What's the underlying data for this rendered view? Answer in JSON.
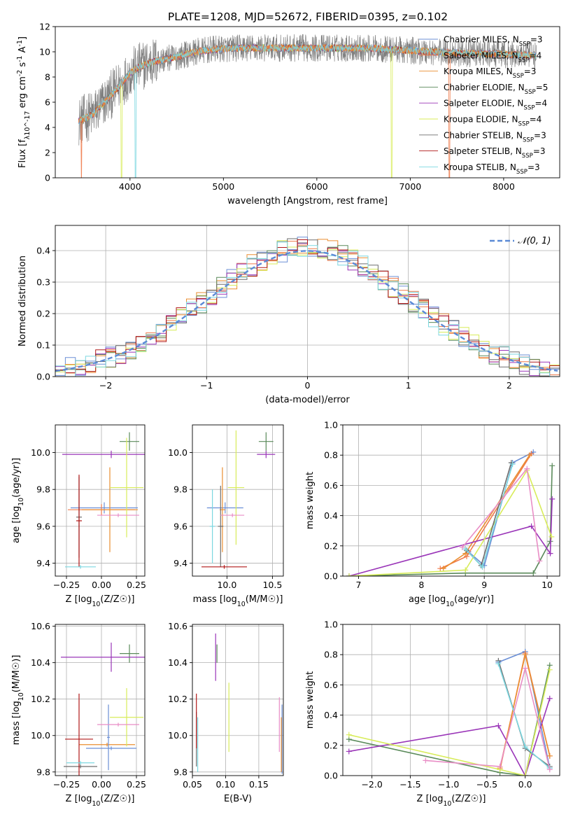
{
  "figure": {
    "title": "PLATE=1208, MJD=52672, FIBERID=0395, z=0.102"
  },
  "colors": {
    "Chabrier MILES": "#6b8fd6",
    "Salpeter MILES": "#f07a4a",
    "Kroupa MILES": "#ea8e30",
    "Chabrier ELODIE": "#5a8a5a",
    "Salpeter ELODIE": "#9a35b8",
    "Kroupa ELODIE": "#d8ec5a",
    "Chabrier STELIB": "#6e6e6e",
    "Salpeter STELIB": "#b01818",
    "Kroupa STELIB": "#7cd7e0",
    "data": "#808080",
    "normal": "#5b8ad6",
    "pink": "#e98ec6"
  },
  "chart_data": [
    {
      "type": "line",
      "id": "spectrum",
      "xlabel": "wavelength [Angstrom, rest frame]",
      "ylabel": "Flux [f_λ10^-17 erg cm^-2 s^-1 A^-1]",
      "xlim": [
        3200,
        8600
      ],
      "ylim": [
        0,
        12
      ],
      "xticks": [
        4000,
        5000,
        6000,
        7000,
        8000
      ],
      "yticks": [
        0,
        2,
        4,
        6,
        8,
        10,
        12
      ],
      "legend_position": "right",
      "legend": [
        "Chabrier MILES, N_SSP=3",
        "Salpeter MILES, N_SSP=4",
        "Kroupa MILES, N_SSP=3",
        "Chabrier ELODIE, N_SSP=5",
        "Salpeter ELODIE, N_SSP=4",
        "Kroupa ELODIE, N_SSP=4",
        "Chabrier STELIB, N_SSP=3",
        "Salpeter STELIB, N_SSP=3",
        "Kroupa STELIB, N_SSP=3"
      ],
      "continuum": {
        "x": [
          3450,
          3600,
          3700,
          3800,
          3900,
          4000,
          4100,
          4200,
          4300,
          4500,
          4700,
          4900,
          5200,
          5600,
          6000,
          6500,
          7000,
          7500,
          8000,
          8350
        ],
        "y": [
          4.5,
          5.0,
          5.8,
          6.6,
          7.4,
          8.3,
          8.8,
          9.1,
          9.3,
          9.6,
          10.0,
          10.2,
          10.3,
          10.3,
          10.3,
          10.3,
          10.1,
          9.9,
          9.8,
          9.7
        ]
      },
      "noise_amplitude": 1.1,
      "dropouts": [
        {
          "x": 3480,
          "model": "Salpeter MILES"
        },
        {
          "x": 3910,
          "model": "Kroupa ELODIE"
        },
        {
          "x": 4060,
          "model": "Kroupa STELIB"
        },
        {
          "x": 6800,
          "model": "Kroupa ELODIE"
        },
        {
          "x": 7420,
          "model": "Salpeter MILES"
        }
      ]
    },
    {
      "type": "histogram",
      "id": "residuals",
      "xlabel": "(data-model)/error",
      "ylabel": "Normed distribution",
      "xlim": [
        -2.5,
        2.5
      ],
      "ylim": [
        0,
        0.48
      ],
      "xticks": [
        -2,
        -1,
        0,
        1,
        2
      ],
      "yticks": [
        0,
        0.1,
        0.2,
        0.3,
        0.4
      ],
      "bin_width": 0.1,
      "legend": [
        "𝒩(0, 1)"
      ],
      "legend_position": "top-right",
      "curve": "normal(0, 1)",
      "jitter": 0.035
    },
    {
      "type": "errorbar",
      "id": "age_vs_Z",
      "xlabel": "Z [log10(Z/Z☉)]",
      "ylabel": "age  [log10(age/yr)]",
      "xlim": [
        -0.33,
        0.31
      ],
      "ylim": [
        9.33,
        10.15
      ],
      "xticks": [
        -0.25,
        0,
        0.25
      ],
      "yticks": [
        9.4,
        9.6,
        9.8,
        10.0
      ],
      "points": [
        {
          "model": "Chabrier MILES",
          "x": 0.02,
          "xerr": 0.24,
          "y": 9.7,
          "yerr": 0.03
        },
        {
          "model": "Salpeter MILES",
          "x": 0.0,
          "xerr": 0.24,
          "y": 9.69,
          "yerr": 0.03
        },
        {
          "model": "Kroupa MILES",
          "x": 0.06,
          "xerr": 0.2,
          "y": 9.69,
          "yerr": 0.23
        },
        {
          "model": "Chabrier ELODIE",
          "x": 0.2,
          "xerr": 0.07,
          "y": 10.06,
          "yerr": 0.05
        },
        {
          "model": "Salpeter ELODIE",
          "x": 0.07,
          "xerr": 0.35,
          "y": 9.99,
          "yerr": 0.02
        },
        {
          "model": "Kroupa ELODIE",
          "x": 0.18,
          "xerr": 0.12,
          "y": 9.81,
          "yerr": 0.27
        },
        {
          "model": "Chabrier STELIB",
          "x": -0.16,
          "xerr": 0.02,
          "y": 9.65,
          "yerr": 0.22
        },
        {
          "model": "Salpeter STELIB",
          "x": -0.16,
          "xerr": 0.02,
          "y": 9.63,
          "yerr": 0.25
        },
        {
          "model": "Kroupa STELIB",
          "x": -0.15,
          "xerr": 0.11,
          "y": 9.38,
          "yerr": 0.01
        },
        {
          "model": "pink",
          "x": 0.12,
          "xerr": 0.15,
          "y": 9.66,
          "yerr": 0.01
        }
      ]
    },
    {
      "type": "errorbar",
      "id": "age_vs_mass",
      "xlabel": "mass [log10(M/M☉)]",
      "ylabel": "",
      "xlim": [
        9.62,
        10.62
      ],
      "ylim": [
        9.33,
        10.15
      ],
      "xticks": [
        10.0,
        10.5
      ],
      "yticks": [
        9.4,
        9.6,
        9.8,
        10.0
      ],
      "points": [
        {
          "model": "Chabrier MILES",
          "x": 9.98,
          "xerr": 0.2,
          "y": 9.7,
          "yerr": 0.03
        },
        {
          "model": "Kroupa MILES",
          "x": 9.95,
          "xerr": 0.03,
          "y": 9.69,
          "yerr": 0.23
        },
        {
          "model": "Chabrier ELODIE",
          "x": 10.43,
          "xerr": 0.08,
          "y": 10.06,
          "yerr": 0.05
        },
        {
          "model": "Salpeter ELODIE",
          "x": 10.43,
          "xerr": 0.1,
          "y": 9.99,
          "yerr": 0.02
        },
        {
          "model": "Kroupa ELODIE",
          "x": 10.1,
          "xerr": 0.09,
          "y": 9.81,
          "yerr": 0.31
        },
        {
          "model": "Chabrier STELIB",
          "x": 9.93,
          "xerr": 0.03,
          "y": 9.6,
          "yerr": 0.22
        },
        {
          "model": "Salpeter STELIB",
          "x": 9.97,
          "xerr": 0.25,
          "y": 9.38,
          "yerr": 0.01
        },
        {
          "model": "Kroupa STELIB",
          "x": 9.84,
          "xerr": 0.03,
          "y": 9.6,
          "yerr": 0.2
        },
        {
          "model": "pink",
          "x": 10.06,
          "xerr": 0.13,
          "y": 9.66,
          "yerr": 0.01
        }
      ]
    },
    {
      "type": "line",
      "id": "mass_weight_vs_age",
      "xlabel": "age  [log10(age/yr)]",
      "ylabel": "mass weight",
      "xlim": [
        6.75,
        10.2
      ],
      "ylim": [
        0,
        1.0
      ],
      "xticks": [
        7,
        8,
        9,
        10
      ],
      "yticks": [
        0,
        0.2,
        0.4,
        0.6,
        0.8,
        1.0
      ],
      "series": [
        {
          "model": "Chabrier MILES",
          "x": [
            8.75,
            9.0,
            9.45,
            9.78
          ],
          "y": [
            0.16,
            0.07,
            0.75,
            0.82
          ]
        },
        {
          "model": "Salpeter MILES",
          "x": [
            8.3,
            8.72,
            9.75
          ],
          "y": [
            0.05,
            0.13,
            0.81
          ]
        },
        {
          "model": "Kroupa MILES",
          "x": [
            8.35,
            8.7,
            9.72
          ],
          "y": [
            0.05,
            0.15,
            0.8
          ]
        },
        {
          "model": "Chabrier ELODIE",
          "x": [
            6.85,
            8.7,
            9.78,
            10.05,
            10.08
          ],
          "y": [
            0.0,
            0.02,
            0.02,
            0.23,
            0.73
          ]
        },
        {
          "model": "Salpeter ELODIE",
          "x": [
            6.85,
            9.75,
            10.05,
            10.08
          ],
          "y": [
            0.0,
            0.33,
            0.15,
            0.51
          ]
        },
        {
          "model": "Kroupa ELODIE",
          "x": [
            6.85,
            8.7,
            9.68,
            10.07
          ],
          "y": [
            0.0,
            0.04,
            0.7,
            0.26
          ]
        },
        {
          "model": "Chabrier STELIB",
          "x": [
            8.72,
            8.95,
            9.43
          ],
          "y": [
            0.17,
            0.07,
            0.75
          ]
        },
        {
          "model": "Kroupa STELIB",
          "x": [
            8.7,
            8.97,
            9.45
          ],
          "y": [
            0.18,
            0.06,
            0.74
          ]
        },
        {
          "model": "pink",
          "x": [
            8.65,
            9.68,
            9.88
          ],
          "y": [
            0.19,
            0.71,
            0.1
          ]
        }
      ]
    },
    {
      "type": "errorbar",
      "id": "mass_vs_Z",
      "xlabel": "Z [log10(Z/Z☉)]",
      "ylabel": "mass [log10(M/M☉)]",
      "xlim": [
        -0.33,
        0.31
      ],
      "ylim": [
        9.78,
        10.61
      ],
      "xticks": [
        -0.25,
        0,
        0.25
      ],
      "yticks": [
        9.8,
        10.0,
        10.2,
        10.4,
        10.6
      ],
      "points": [
        {
          "model": "Chabrier MILES",
          "x": 0.07,
          "xerr": 0.18,
          "y": 9.93,
          "yerr": 0.01
        },
        {
          "model": "Kroupa MILES",
          "x": 0.04,
          "xerr": 0.2,
          "y": 9.95,
          "yerr": 0.01
        },
        {
          "model": "Chabrier ELODIE",
          "x": 0.2,
          "xerr": 0.07,
          "y": 10.45,
          "yerr": 0.05
        },
        {
          "model": "Salpeter ELODIE",
          "x": 0.07,
          "xerr": 0.36,
          "y": 10.43,
          "yerr": 0.08
        },
        {
          "model": "Kroupa ELODIE",
          "x": 0.18,
          "xerr": 0.12,
          "y": 10.1,
          "yerr": 0.16
        },
        {
          "model": "Chabrier STELIB",
          "x": -0.15,
          "xerr": 0.12,
          "y": 9.83,
          "yerr": 0.01
        },
        {
          "model": "Salpeter STELIB",
          "x": -0.16,
          "xerr": 0.1,
          "y": 9.98,
          "yerr": 0.25
        },
        {
          "model": "Kroupa STELIB",
          "x": -0.15,
          "xerr": 0.1,
          "y": 9.85,
          "yerr": 0.01
        },
        {
          "model": "Chabrier MILES",
          "x": 0.05,
          "xerr": 0.01,
          "y": 9.99,
          "yerr": 0.18
        },
        {
          "model": "pink",
          "x": 0.12,
          "xerr": 0.15,
          "y": 10.06,
          "yerr": 0.01
        }
      ]
    },
    {
      "type": "errorbar",
      "id": "mass_vs_EBV",
      "xlabel": "E(B-V)",
      "ylabel": "",
      "xlim": [
        0.05,
        0.187
      ],
      "ylim": [
        9.78,
        10.61
      ],
      "xticks": [
        0.05,
        0.1,
        0.15
      ],
      "yticks": [
        9.8,
        10.0,
        10.2,
        10.4,
        10.6
      ],
      "points": [
        {
          "model": "Chabrier MILES",
          "x": 0.185,
          "xerr": 0,
          "y": 9.98,
          "yerr": 0.19
        },
        {
          "model": "Kroupa MILES",
          "x": 0.184,
          "xerr": 0,
          "y": 9.95,
          "yerr": 0.15
        },
        {
          "model": "Chabrier ELODIE",
          "x": 0.087,
          "xerr": 0,
          "y": 10.45,
          "yerr": 0.05
        },
        {
          "model": "Salpeter ELODIE",
          "x": 0.085,
          "xerr": 0,
          "y": 10.43,
          "yerr": 0.13
        },
        {
          "model": "Kroupa ELODIE",
          "x": 0.105,
          "xerr": 0,
          "y": 10.1,
          "yerr": 0.19
        },
        {
          "model": "Chabrier STELIB",
          "x": 0.056,
          "xerr": 0,
          "y": 9.98,
          "yerr": 0.15
        },
        {
          "model": "Salpeter STELIB",
          "x": 0.056,
          "xerr": 0,
          "y": 10.08,
          "yerr": 0.15
        },
        {
          "model": "Kroupa STELIB",
          "x": 0.058,
          "xerr": 0,
          "y": 9.95,
          "yerr": 0.15
        },
        {
          "model": "pink",
          "x": 0.181,
          "xerr": 0,
          "y": 10.06,
          "yerr": 0.15
        }
      ]
    },
    {
      "type": "line",
      "id": "mass_weight_vs_Z",
      "xlabel": "Z [log10(Z/Z☉)]",
      "ylabel": "mass weight",
      "xlim": [
        -2.38,
        0.45
      ],
      "ylim": [
        0,
        1.0
      ],
      "xticks": [
        -2.0,
        -1.5,
        -1.0,
        -0.5,
        0.0
      ],
      "yticks": [
        0,
        0.2,
        0.4,
        0.6,
        0.8,
        1.0
      ],
      "series": [
        {
          "model": "Chabrier MILES",
          "x": [
            -0.35,
            0.0,
            0.32
          ],
          "y": [
            0.75,
            0.82,
            0.05
          ]
        },
        {
          "model": "Salpeter MILES",
          "x": [
            -0.33,
            0.0,
            0.32
          ],
          "y": [
            0.04,
            0.81,
            0.13
          ]
        },
        {
          "model": "Kroupa MILES",
          "x": [
            -0.33,
            0.0,
            0.32
          ],
          "y": [
            0.05,
            0.8,
            0.13
          ]
        },
        {
          "model": "Chabrier ELODIE",
          "x": [
            -2.3,
            -0.33,
            0.0,
            0.32
          ],
          "y": [
            0.24,
            0.02,
            0.0,
            0.73
          ]
        },
        {
          "model": "Salpeter ELODIE",
          "x": [
            -2.3,
            -0.35,
            0.0,
            0.32
          ],
          "y": [
            0.16,
            0.33,
            0.0,
            0.51
          ]
        },
        {
          "model": "Kroupa ELODIE",
          "x": [
            -2.3,
            -0.33,
            0.0,
            0.32
          ],
          "y": [
            0.27,
            0.04,
            0.0,
            0.7
          ]
        },
        {
          "model": "Chabrier STELIB",
          "x": [
            -0.35,
            0.0,
            0.32
          ],
          "y": [
            0.76,
            0.18,
            0.06
          ]
        },
        {
          "model": "Kroupa STELIB",
          "x": [
            -0.35,
            0.0,
            0.32
          ],
          "y": [
            0.74,
            0.19,
            0.05
          ]
        },
        {
          "model": "pink",
          "x": [
            -1.3,
            -0.33,
            0.0,
            0.32
          ],
          "y": [
            0.1,
            0.06,
            0.71,
            0.04
          ]
        }
      ]
    }
  ]
}
